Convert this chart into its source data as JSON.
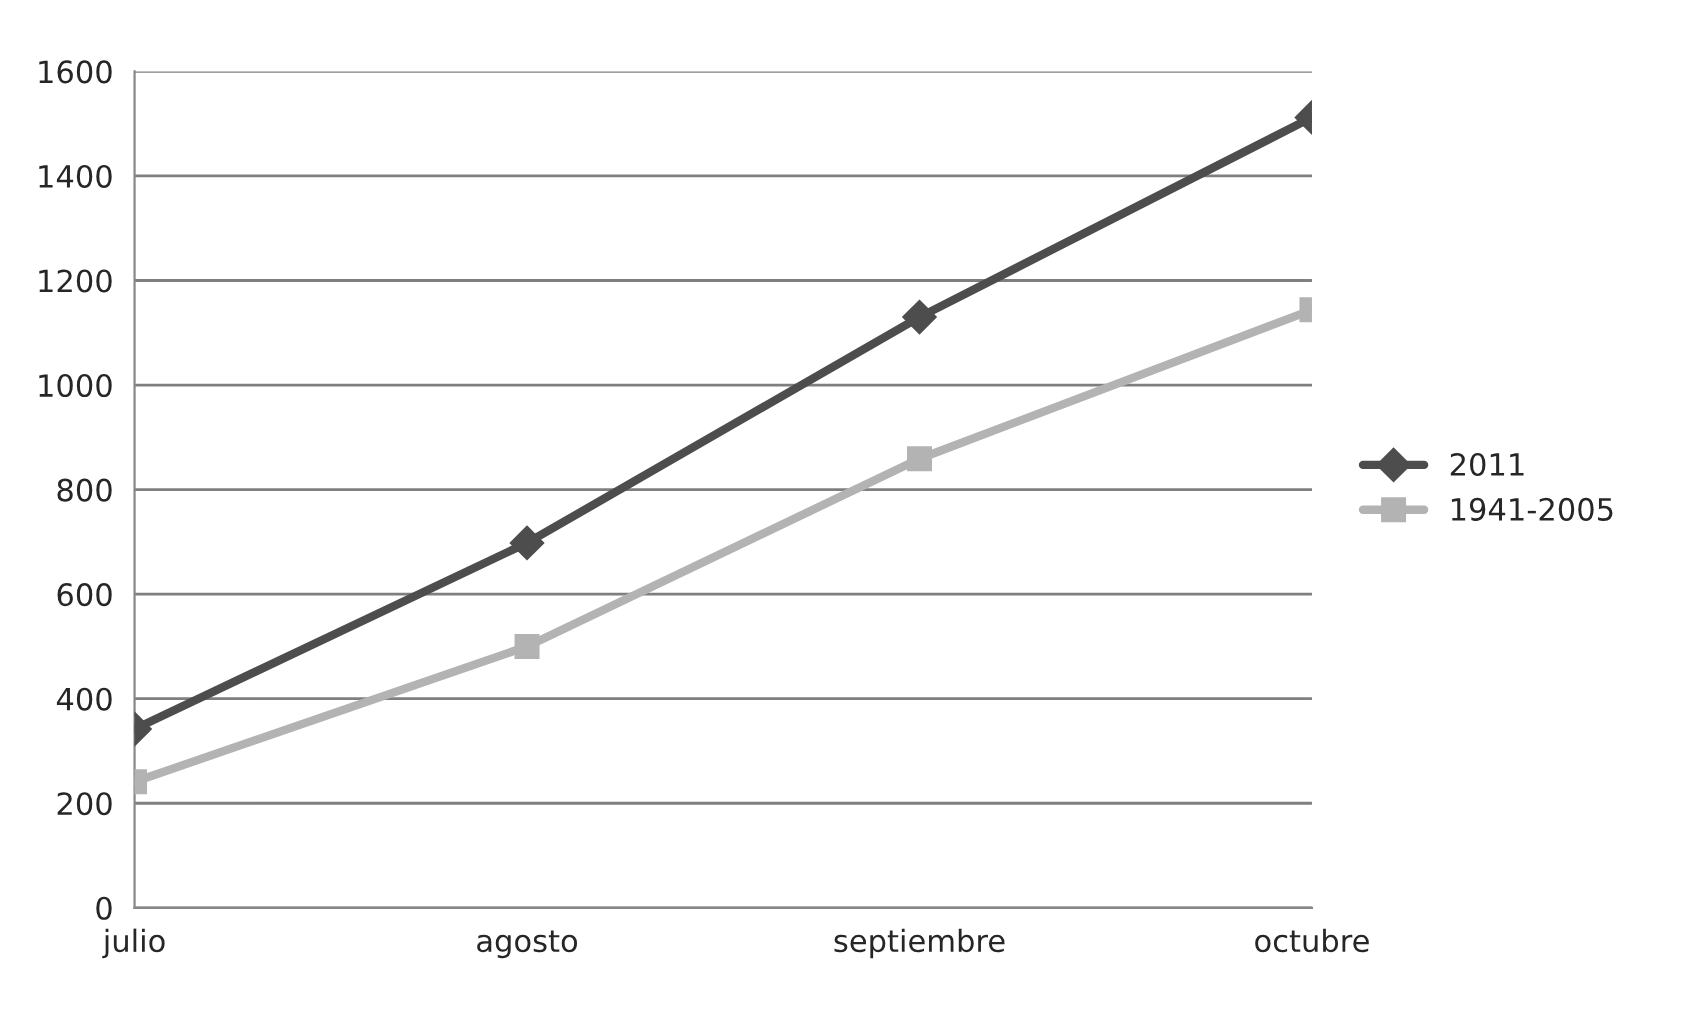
{
  "chart_data": {
    "type": "line",
    "categories": [
      "julio",
      "agosto",
      "septiembre",
      "octubre"
    ],
    "series": [
      {
        "name": "2011",
        "color": "#4d4d4d",
        "marker": "diamond",
        "values": [
          342,
          698,
          1130,
          1512
        ]
      },
      {
        "name": "1941-2005",
        "color": "#b3b3b3",
        "marker": "square",
        "values": [
          241,
          500,
          859,
          1144
        ]
      }
    ],
    "ylim": [
      0,
      1600
    ],
    "yticks": [
      0,
      200,
      400,
      600,
      800,
      1000,
      1200,
      1400,
      1600
    ],
    "grid": "y",
    "legend": "right",
    "line_style": "solid"
  }
}
